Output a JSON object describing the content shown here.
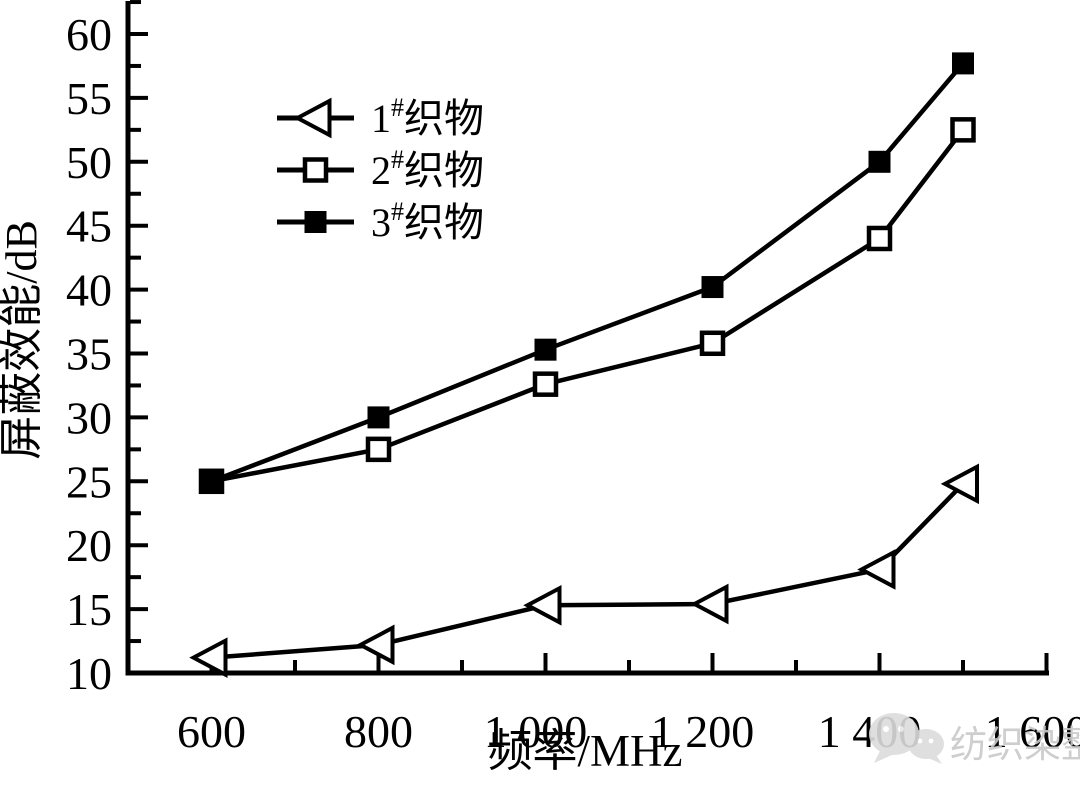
{
  "chart_data": {
    "type": "line",
    "title": "",
    "xlabel": "频率/MHz",
    "ylabel": "屏蔽效能/dB",
    "x": [
      600,
      800,
      1000,
      1200,
      1400,
      1500
    ],
    "series": [
      {
        "name": "1#织物",
        "label_num": "1",
        "label_sup": "#",
        "label_text": "织物",
        "marker": "open-left-triangle",
        "values": [
          11.2,
          12.2,
          15.3,
          15.4,
          18.1,
          24.8
        ]
      },
      {
        "name": "2#织物",
        "label_num": "2",
        "label_sup": "#",
        "label_text": "织物",
        "marker": "open-square",
        "values": [
          25.0,
          27.5,
          32.6,
          35.8,
          44.0,
          52.5
        ]
      },
      {
        "name": "3#织物",
        "label_num": "3",
        "label_sup": "#",
        "label_text": "织物",
        "marker": "filled-square",
        "values": [
          25.0,
          30.0,
          35.3,
          40.2,
          50.0,
          57.7
        ]
      }
    ],
    "x_ticks": [
      600,
      800,
      1000,
      1200,
      1400,
      1600
    ],
    "x_tick_labels": [
      "600",
      "800",
      "1 000",
      "1 200",
      "1 400",
      "1 600"
    ],
    "x_minor_ticks": [
      700,
      900,
      1100,
      1300,
      1500
    ],
    "y_ticks": [
      10,
      15,
      20,
      25,
      30,
      35,
      40,
      45,
      50,
      55,
      60
    ],
    "y_minor_ticks": [
      12.5,
      17.5,
      22.5,
      27.5,
      32.5,
      37.5,
      42.5,
      47.5,
      52.5,
      57.5,
      62.5
    ],
    "xlim": [
      500,
      1603
    ],
    "ylim": [
      10,
      62.6
    ],
    "grid": false,
    "legend_position": "upper-left-inside",
    "colors": {
      "line": "#000000",
      "background": "#ffffff"
    }
  },
  "watermark": {
    "icon": "wechat-icon",
    "text": "纺织染整",
    "color": "#c9c9c9"
  }
}
